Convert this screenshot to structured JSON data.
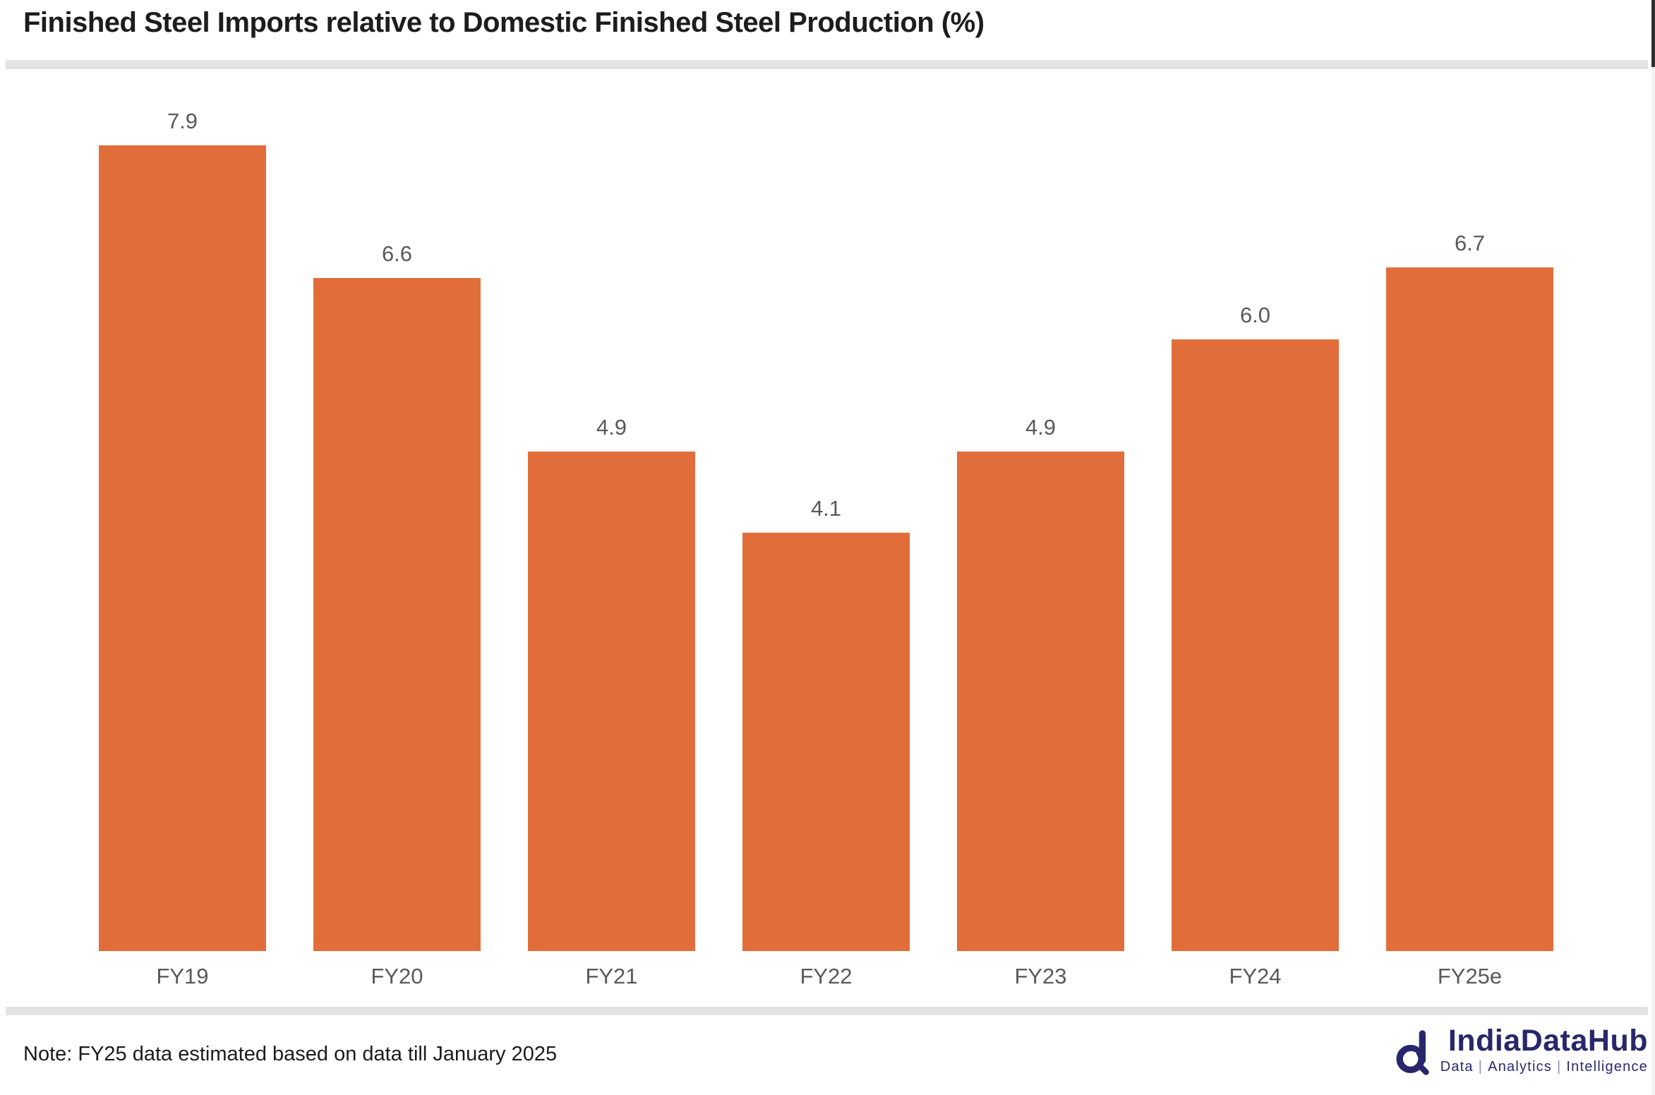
{
  "header": {
    "title": "Finished Steel Imports relative to Domestic Finished Steel Production (%)"
  },
  "footer": {
    "note": "Note: FY25 data estimated based on data till January 2025"
  },
  "logo": {
    "name": "IndiaDataHub",
    "tagline_parts": [
      "Data",
      "Analytics",
      "Intelligence"
    ],
    "pipe": "|",
    "color": "#29276b"
  },
  "colors": {
    "bar": "#e16e3a",
    "label_gray": "#595959",
    "divider": "#e3e3e3",
    "title_text": "#1d1d1d",
    "logo_navy": "#29276b"
  },
  "chart_data": {
    "type": "bar",
    "title": "Finished Steel Imports relative to Domestic Finished Steel Production (%)",
    "categories": [
      "FY19",
      "FY20",
      "FY21",
      "FY22",
      "FY23",
      "FY24",
      "FY25e"
    ],
    "values": [
      7.9,
      6.6,
      4.9,
      4.1,
      4.9,
      6.0,
      6.7
    ],
    "data_labels": [
      "7.9",
      "6.6",
      "4.9",
      "4.1",
      "4.9",
      "6.0",
      "6.7"
    ],
    "xlabel": "",
    "ylabel": "",
    "ylim": [
      0,
      8.6
    ],
    "grid": false,
    "legend": false,
    "bar_color": "#e16e3a",
    "note": "Note: FY25 data estimated based on data till January 2025"
  }
}
